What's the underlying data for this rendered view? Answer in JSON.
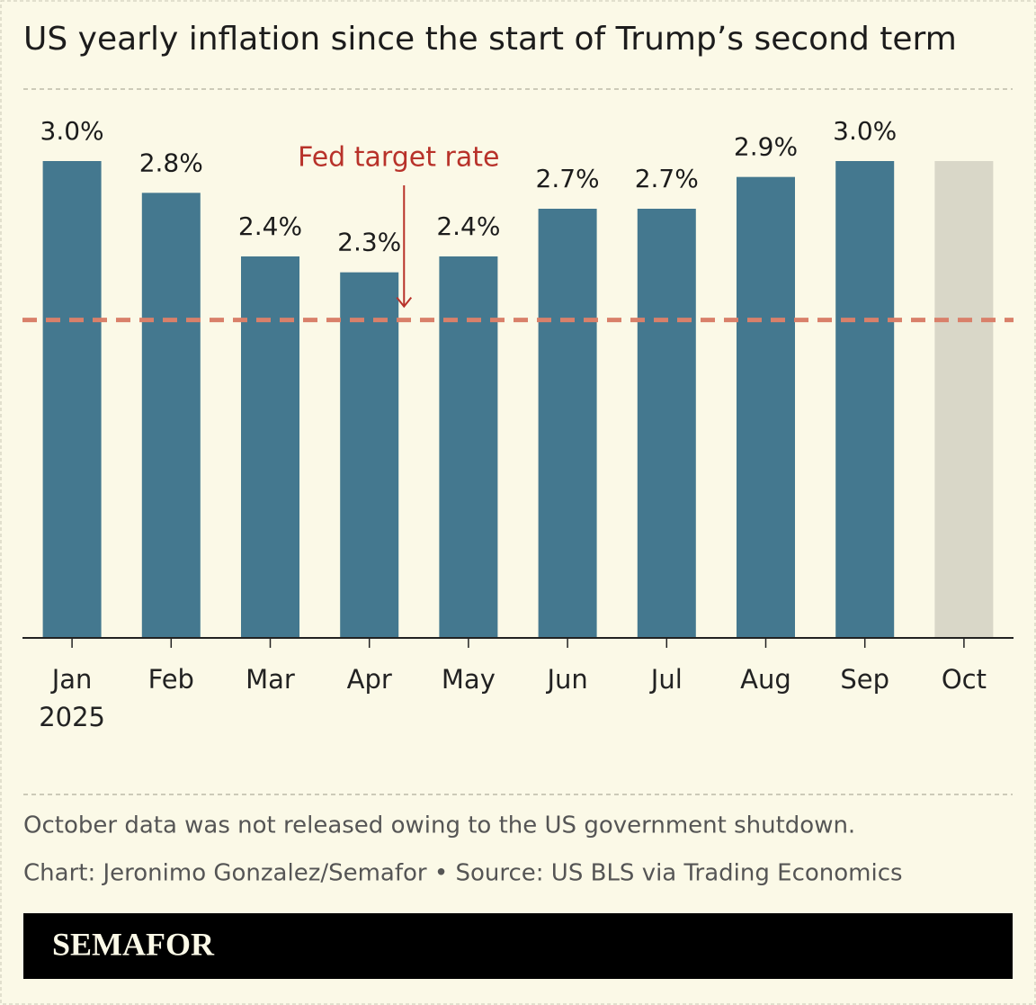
{
  "chart_data": {
    "type": "bar",
    "title": "US yearly inflation since the start of Trump’s second term",
    "categories": [
      "Jan",
      "Feb",
      "Mar",
      "Apr",
      "May",
      "Jun",
      "Jul",
      "Aug",
      "Sep",
      "Oct"
    ],
    "x_year_label": "2025",
    "values": [
      3.0,
      2.8,
      2.4,
      2.3,
      2.4,
      2.7,
      2.7,
      2.9,
      3.0,
      null
    ],
    "value_labels": [
      "3.0%",
      "2.8%",
      "2.4%",
      "2.3%",
      "2.4%",
      "2.7%",
      "2.7%",
      "2.9%",
      "3.0%",
      null
    ],
    "color": "#44788f",
    "missing_color": "#d9d7c8",
    "ylim": [
      0,
      3.0
    ],
    "target": {
      "value": 2,
      "label": "Fed target rate",
      "color": "#d9806a",
      "label_color": "#b8322a"
    },
    "note": "October data was not released owing to the US government shutdown.",
    "source": "Chart: Jeronimo Gonzalez/Semafor • Source: US BLS via Trading Economics",
    "brand": "SEMAFOR"
  }
}
